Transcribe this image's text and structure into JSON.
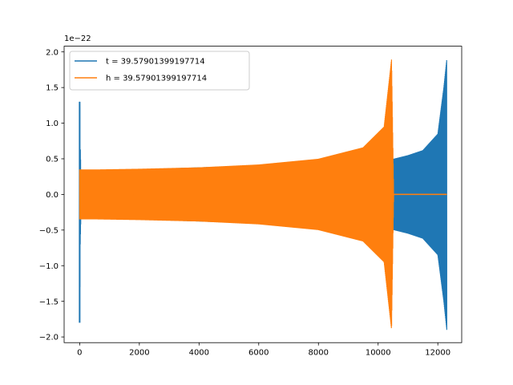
{
  "chart_data": {
    "type": "line",
    "offset_text": "1e−22",
    "xlim": [
      -520,
      12800
    ],
    "ylim": [
      -2.08,
      2.08
    ],
    "xticks": [
      0,
      2000,
      4000,
      6000,
      8000,
      10000,
      12000
    ],
    "xtick_labels": [
      "0",
      "2000",
      "4000",
      "6000",
      "8000",
      "10000",
      "12000"
    ],
    "yticks": [
      -2.0,
      -1.5,
      -1.0,
      -0.5,
      0.0,
      0.5,
      1.0,
      1.5,
      2.0
    ],
    "ytick_labels": [
      "−2.0",
      "−1.5",
      "−1.0",
      "−0.5",
      "0.0",
      "0.5",
      "1.0",
      "1.5",
      "2.0"
    ],
    "grid": false,
    "legend_position": "top-left",
    "series": [
      {
        "name": "t = 39.57901399197714",
        "color": "#1f77b4",
        "description_points": {
          "x": [
            0,
            5,
            20,
            60,
            100,
            1800,
            2500,
            4000,
            6000,
            8000,
            9500,
            10400,
            10520,
            11000,
            11500,
            12000,
            12200,
            12300
          ],
          "envelope": [
            1.3,
            -1.8,
            0.7,
            0.0,
            0.0,
            0.35,
            0.36,
            0.38,
            0.41,
            0.45,
            0.5,
            0.5,
            0.5,
            0.55,
            0.62,
            0.85,
            1.5,
            1.9
          ]
        }
      },
      {
        "name": "h = 39.57901399197714",
        "color": "#ff7f0e",
        "description_points": {
          "x": [
            0,
            100,
            500,
            2000,
            4000,
            6000,
            8000,
            9500,
            10200,
            10450,
            10520,
            12300
          ],
          "envelope": [
            0.35,
            0.35,
            0.35,
            0.36,
            0.38,
            0.42,
            0.5,
            0.66,
            0.95,
            1.9,
            0.0,
            0.0
          ]
        }
      }
    ]
  }
}
